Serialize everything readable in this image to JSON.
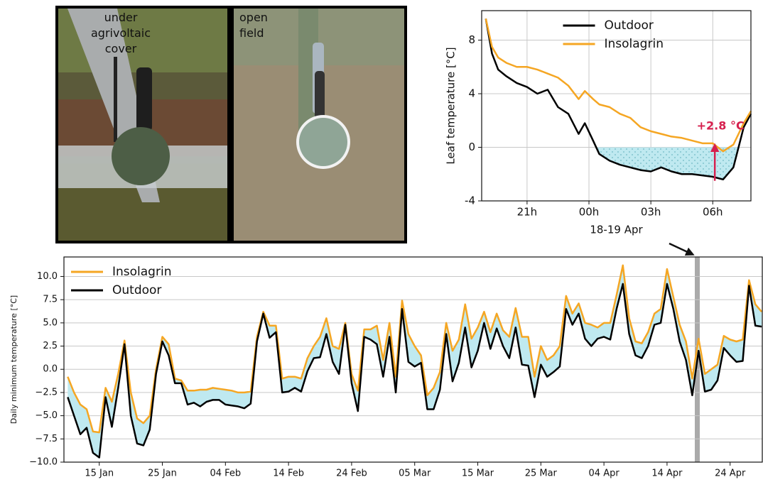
{
  "photos": [
    {
      "label": "under agrivoltaic cover"
    },
    {
      "label": "open field"
    }
  ],
  "chart_data": [
    {
      "type": "line",
      "xlabel": "18-19 Apr",
      "ylabel": "Leaf temperature [°C]",
      "x": [
        19,
        19.3,
        19.6,
        20,
        20.5,
        21,
        21.5,
        22,
        22.5,
        23,
        23.5,
        23.8,
        24.2,
        24.5,
        25,
        25.5,
        26,
        26.5,
        27,
        27.5,
        28,
        28.5,
        29,
        29.5,
        30,
        30.5,
        31,
        31.5,
        31.85
      ],
      "series": [
        {
          "name": "Outdoor",
          "color": "#000000",
          "values": [
            9.6,
            7,
            5.8,
            5.3,
            4.8,
            4.5,
            4.0,
            4.3,
            3,
            2.5,
            1,
            1.8,
            0.5,
            -0.5,
            -1,
            -1.3,
            -1.5,
            -1.7,
            -1.8,
            -1.5,
            -1.8,
            -2,
            -2,
            -2.1,
            -2.2,
            -2.4,
            -1.5,
            1.5,
            2.5
          ]
        },
        {
          "name": "Insolagrin",
          "color": "#f5a623",
          "values": [
            9.6,
            7.5,
            6.7,
            6.3,
            6,
            6,
            5.8,
            5.5,
            5.2,
            4.6,
            3.6,
            4.2,
            3.6,
            3.2,
            3,
            2.5,
            2.2,
            1.5,
            1.2,
            1,
            0.8,
            0.7,
            0.5,
            0.3,
            0.3,
            -0.3,
            0.2,
            1.8,
            2.7
          ]
        }
      ],
      "xlim": [
        18.8,
        31.85
      ],
      "xticks": [
        {
          "value": 21,
          "label": "21h"
        },
        {
          "value": 24,
          "label": "00h"
        },
        {
          "value": 27,
          "label": "03h"
        },
        {
          "value": 30,
          "label": "06h"
        }
      ],
      "ylim": [
        -4,
        10.2
      ],
      "yticks": [
        -4,
        0,
        4,
        8
      ],
      "grid": "both",
      "legend": "upper center",
      "shade_below_zero_color": "#bfe9f0",
      "annotation": {
        "text": "+2.8 °C",
        "x": 30.1,
        "from": -2.5,
        "to": 0.3,
        "color": "#d6204e"
      }
    },
    {
      "type": "line",
      "ylabel": "Daily minimum temperature [°C]",
      "x": [
        10,
        11,
        12,
        13,
        14,
        15,
        16,
        17,
        18,
        19,
        20,
        21,
        22,
        23,
        24,
        25,
        26,
        27,
        28,
        29,
        30,
        31,
        32,
        33,
        34,
        35,
        36,
        37,
        38,
        39,
        40,
        41,
        42,
        43,
        44,
        45,
        46,
        47,
        48,
        49,
        50,
        51,
        52,
        53,
        54,
        55,
        56,
        57,
        58,
        59,
        60,
        61,
        62,
        63,
        64,
        65,
        66,
        67,
        68,
        69,
        70,
        71,
        72,
        73,
        74,
        75,
        76,
        77,
        78,
        79,
        80,
        81,
        82,
        83,
        84,
        85,
        86,
        87,
        88,
        89,
        90,
        91,
        92,
        93,
        94,
        95,
        96,
        97,
        98,
        99,
        100,
        101,
        102,
        103,
        104,
        105,
        106,
        107,
        108,
        109,
        110,
        111,
        112,
        113,
        114,
        115,
        116,
        117,
        118,
        119,
        120
      ],
      "series": [
        {
          "name": "Insolagrin",
          "color": "#f5a623",
          "values": [
            -0.8,
            -2.5,
            -3.8,
            -4.3,
            -6.7,
            -6.8,
            -2,
            -3.5,
            -0.5,
            3.1,
            -2.5,
            -5.3,
            -5.8,
            -5,
            0,
            3.5,
            2.7,
            -1,
            -1.2,
            -2.3,
            -2.3,
            -2.2,
            -2.2,
            -2,
            -2.1,
            -2.2,
            -2.3,
            -2.5,
            -2.5,
            -2.4,
            3.5,
            6.2,
            4.7,
            4.7,
            -1,
            -0.8,
            -0.8,
            -1,
            1.2,
            2.5,
            3.5,
            5.5,
            2.5,
            2.2,
            5,
            -0.5,
            -2.3,
            4.3,
            4.3,
            4.7,
            1,
            5,
            -0.8,
            7.4,
            3.8,
            2.5,
            1.5,
            -2.8,
            -2,
            -0.3,
            5,
            2,
            3.2,
            7,
            3.3,
            4.5,
            6.2,
            4,
            6,
            4.2,
            3.5,
            6.6,
            3.5,
            3.5,
            -0.8,
            2.5,
            1,
            1.5,
            2.5,
            7.9,
            6,
            7.1,
            5,
            4.8,
            4.5,
            5,
            5,
            8,
            11.2,
            5.5,
            3,
            2.8,
            4,
            6,
            6.5,
            10.8,
            7.8,
            4.8,
            3,
            -1,
            3.3,
            -0.5,
            0,
            0.5,
            3.6,
            3.2,
            3,
            3.2,
            9.6,
            7,
            6.2
          ]
        },
        {
          "name": "Outdoor",
          "color": "#000000",
          "values": [
            -3,
            -5,
            -7,
            -6.3,
            -9,
            -9.5,
            -3,
            -6.2,
            -2,
            2.7,
            -5,
            -8,
            -8.2,
            -6.5,
            -0.5,
            3,
            1.5,
            -1.5,
            -1.5,
            -3.8,
            -3.6,
            -4,
            -3.5,
            -3.3,
            -3.3,
            -3.8,
            -3.9,
            -4,
            -4.2,
            -3.7,
            3,
            6,
            3.4,
            4,
            -2.5,
            -2.4,
            -2,
            -2.4,
            -0.2,
            1.2,
            1.3,
            3.8,
            0.8,
            -0.5,
            4.8,
            -1.5,
            -4.5,
            3.5,
            3.2,
            2.7,
            -0.8,
            3.5,
            -2.5,
            6.5,
            0.8,
            0.3,
            0.7,
            -4.3,
            -4.3,
            -2.2,
            3.8,
            -1.3,
            0.7,
            4.5,
            0.2,
            2,
            5,
            2.2,
            4.4,
            2.5,
            1.2,
            4.5,
            0.5,
            0.4,
            -3,
            0.5,
            -0.8,
            -0.3,
            0.3,
            6.5,
            4.8,
            6,
            3.3,
            2.5,
            3.3,
            3.5,
            3.2,
            6.5,
            9.2,
            3.8,
            1.5,
            1.2,
            2.5,
            4.8,
            5,
            9.2,
            6.5,
            3,
            1,
            -2.8,
            2,
            -2.4,
            -2.2,
            -1.2,
            2.3,
            1.5,
            0.8,
            0.9,
            9,
            4.7,
            4.6
          ]
        }
      ],
      "xlim": [
        9.4,
        120.1
      ],
      "xticks": [
        {
          "value": 15,
          "label": "15 Jan"
        },
        {
          "value": 25,
          "label": "25 Jan"
        },
        {
          "value": 35,
          "label": "04 Feb"
        },
        {
          "value": 45,
          "label": "14 Feb"
        },
        {
          "value": 55,
          "label": "24 Feb"
        },
        {
          "value": 65,
          "label": "05 Mar"
        },
        {
          "value": 75,
          "label": "15 Mar"
        },
        {
          "value": 85,
          "label": "25 Mar"
        },
        {
          "value": 95,
          "label": "04 Apr"
        },
        {
          "value": 105,
          "label": "14 Apr"
        },
        {
          "value": 115,
          "label": "24 Apr"
        }
      ],
      "ylim": [
        -10,
        12.1
      ],
      "yticks": [
        {
          "value": -10,
          "label": "−10.0"
        },
        {
          "value": -7.5,
          "label": "−7.5"
        },
        {
          "value": -5,
          "label": "−5.0"
        },
        {
          "value": -2.5,
          "label": "−2.5"
        },
        {
          "value": 0,
          "label": "0.0"
        },
        {
          "value": 2.5,
          "label": "2.5"
        },
        {
          "value": 5,
          "label": "5.0"
        },
        {
          "value": 7.5,
          "label": "7.5"
        },
        {
          "value": 10,
          "label": "10.0"
        }
      ],
      "grid": "y",
      "legend": "upper left",
      "fill_between_color": "#bfe9f0"
    }
  ]
}
